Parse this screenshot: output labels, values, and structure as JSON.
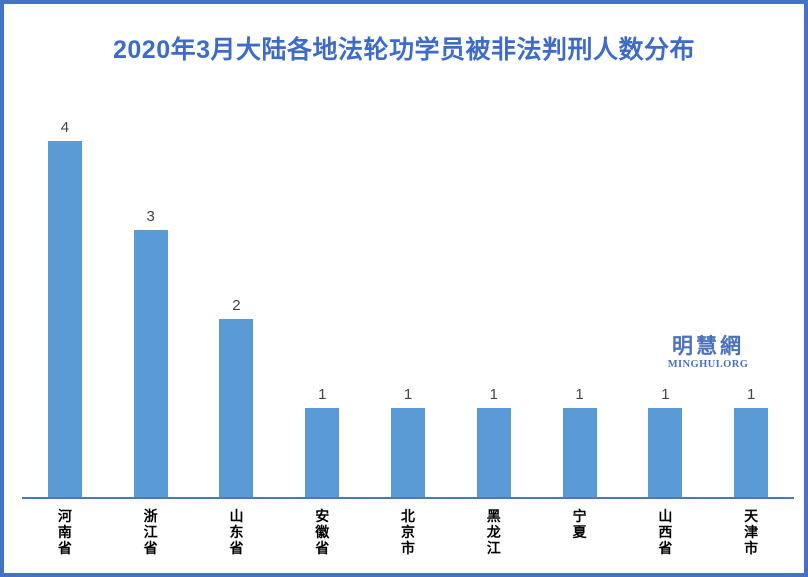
{
  "title": "2020年3月大陆各地法轮功学员被非法判刑人数分布",
  "watermark": {
    "cn": "明慧網",
    "en": "MINGHUI.ORG"
  },
  "colors": {
    "bar": "#5B9BD5",
    "axis_line": "#4878BE",
    "border": "#4472C4",
    "title": "#3D6BC7",
    "value_label": "#444444",
    "watermark": "#4A72BC"
  },
  "chart_data": {
    "type": "bar",
    "title": "2020年3月大陆各地法轮功学员被非法判刑人数分布",
    "categories": [
      "河南省",
      "浙江省",
      "山东省",
      "安徽省",
      "北京市",
      "黑龙江",
      "宁夏",
      "山西省",
      "天津市"
    ],
    "values": [
      4,
      3,
      2,
      1,
      1,
      1,
      1,
      1,
      1
    ],
    "xlabel": "",
    "ylabel": "",
    "ylim": [
      0,
      4.4
    ],
    "data_labels": true,
    "grid": false,
    "legend": false,
    "y_axis_visible": false,
    "category_label_orientation": "vertical-stacked"
  }
}
